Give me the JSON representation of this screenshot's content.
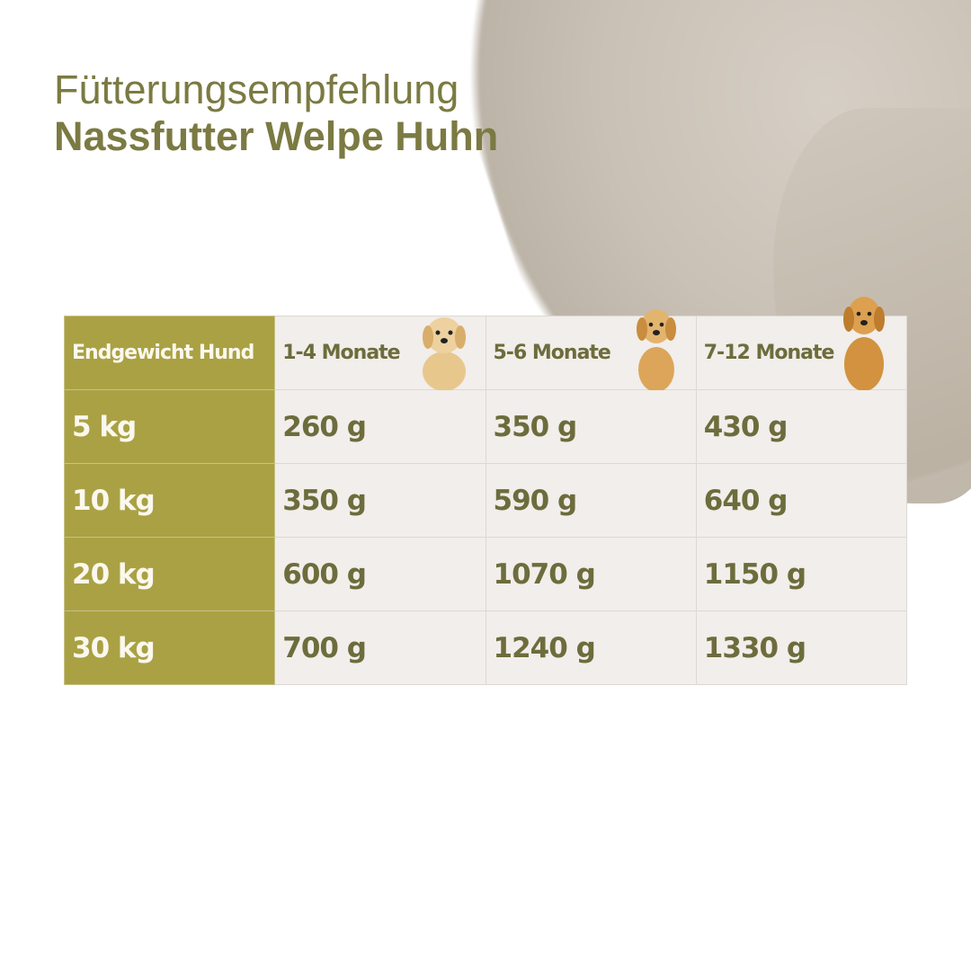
{
  "title": {
    "line1": "Fütterungsempfehlung",
    "line2": "Nassfutter Welpe Huhn"
  },
  "table": {
    "header": [
      "Endgewicht Hund",
      "1-4 Monate",
      "5-6 Monate",
      "7-12 Monate"
    ],
    "rows": [
      {
        "weight": "5 kg",
        "values": [
          "260 g",
          "350 g",
          "430 g"
        ]
      },
      {
        "weight": "10 kg",
        "values": [
          "350 g",
          "590 g",
          "640 g"
        ]
      },
      {
        "weight": "20 kg",
        "values": [
          "600 g",
          "1070 g",
          "1150 g"
        ]
      },
      {
        "weight": "30 kg",
        "values": [
          "700 g",
          "1240 g",
          "1330 g"
        ]
      }
    ]
  },
  "colors": {
    "accent": "#aaa144",
    "text": "#6d6c3c",
    "cell": "#f1eeeb"
  },
  "icons": [
    "puppy-image",
    "young-dog-image",
    "adult-dog-image"
  ]
}
